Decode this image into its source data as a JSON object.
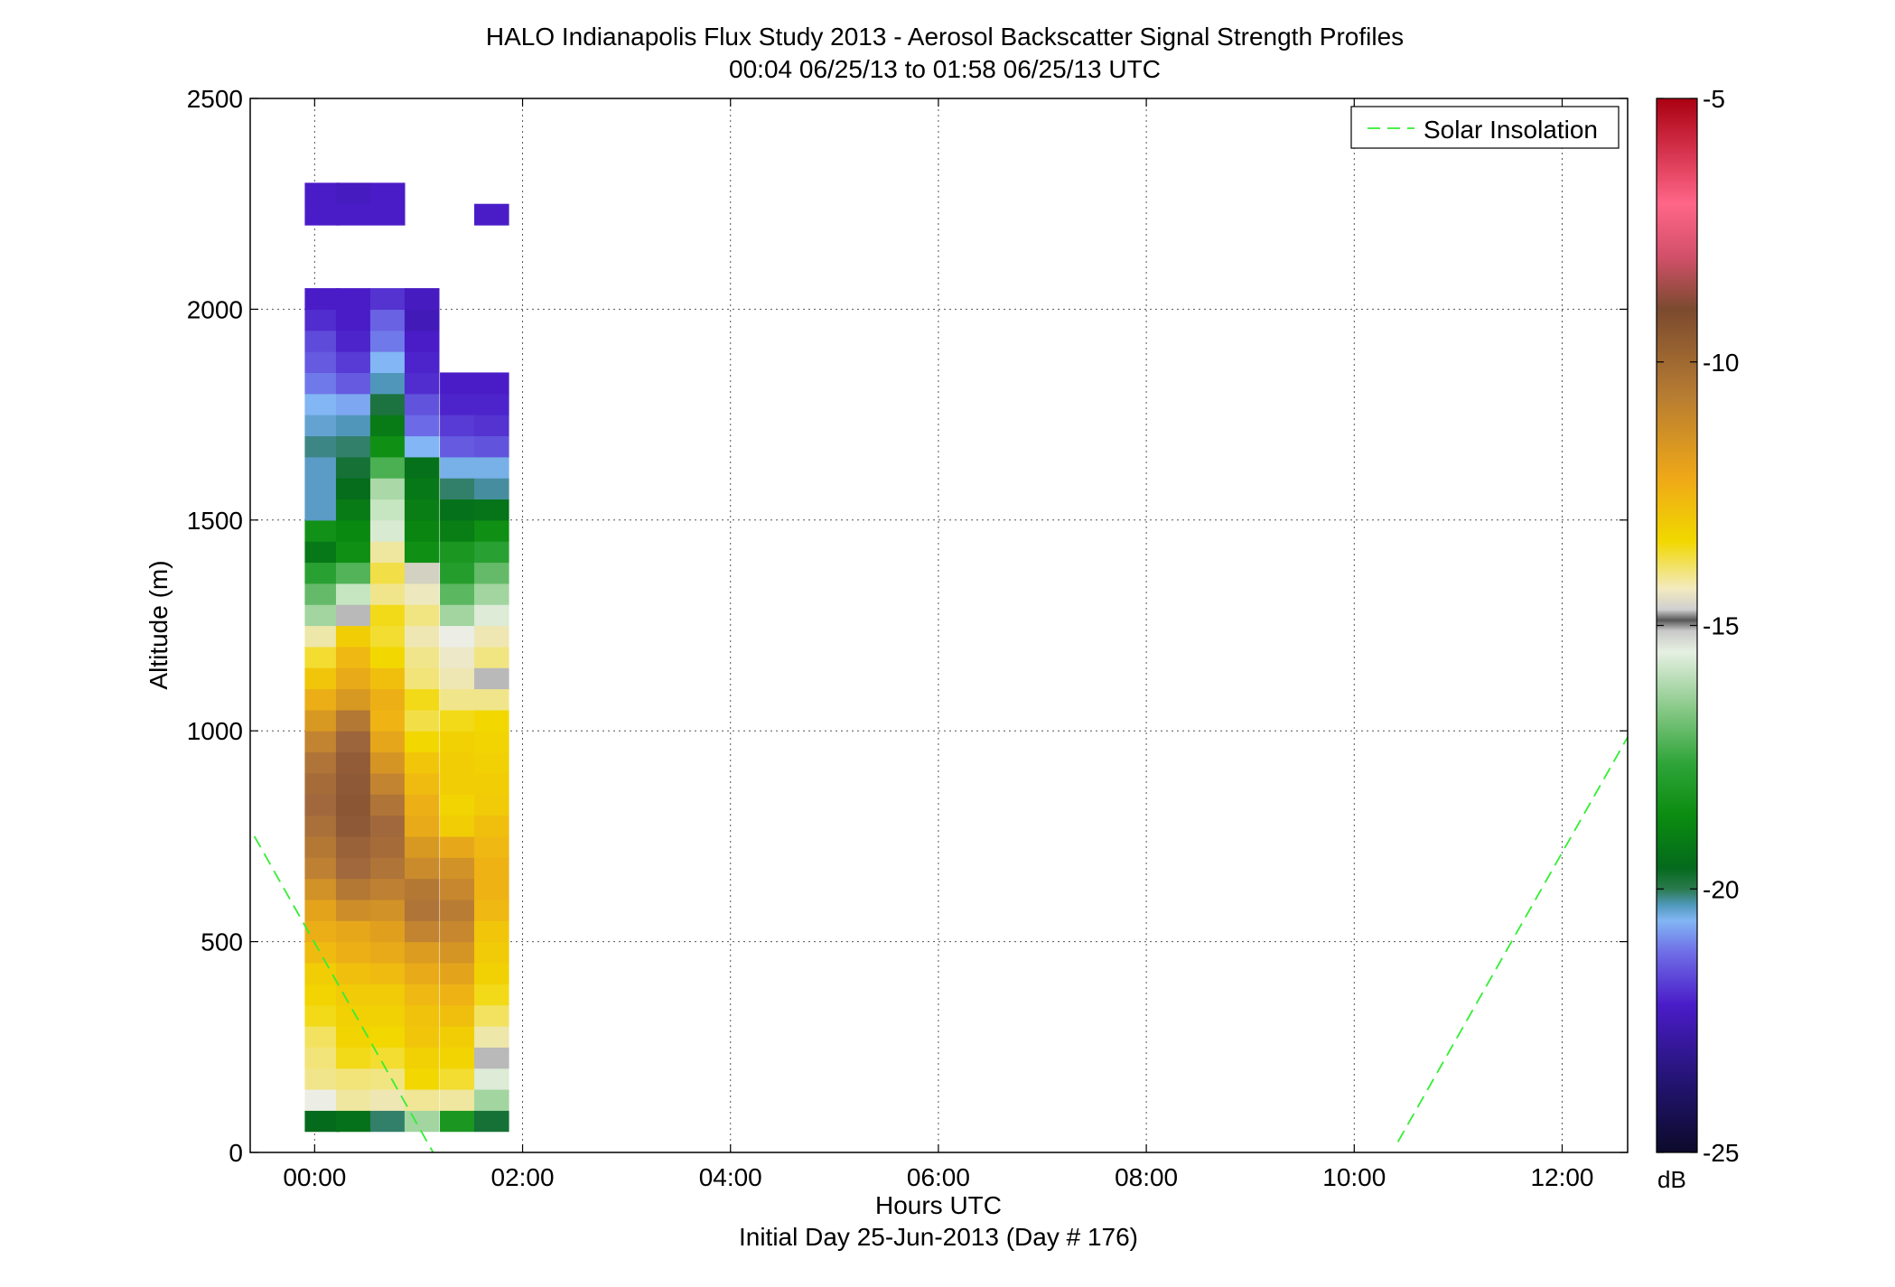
{
  "colors": {
    "background": "#ffffff",
    "axis": "#000000",
    "grid": "#555555",
    "solar_line": "#33ee33"
  },
  "chart_data": {
    "type": "heatmap",
    "title": "HALO Indianapolis Flux Study 2013 - Aerosol Backscatter Signal Strength Profiles",
    "subtitle": "00:04 06/25/13 to 01:58 06/25/13  UTC",
    "xlabel": "Hours UTC",
    "xlabel2": "Initial Day 25-Jun-2013 (Day # 176)",
    "ylabel": "Altitude (m)",
    "xlim": [
      -0.62,
      12.63
    ],
    "ylim": [
      0,
      2500
    ],
    "x_ticks": [
      0,
      2,
      4,
      6,
      8,
      10,
      12
    ],
    "x_tick_labels": [
      "00:00",
      "02:00",
      "04:00",
      "06:00",
      "08:00",
      "10:00",
      "12:00"
    ],
    "y_ticks": [
      0,
      500,
      1000,
      1500,
      2000,
      2500
    ],
    "y_tick_labels": [
      "0",
      "500",
      "1000",
      "1500",
      "2000",
      "2500"
    ],
    "grid": true,
    "legend": {
      "position": "top-right",
      "entries": [
        {
          "label": "Solar Insolation",
          "style": "dashed",
          "color": "#33ee33"
        }
      ]
    },
    "colorbar": {
      "unit": "dB",
      "range": [
        -25,
        -5
      ],
      "ticks": [
        -25,
        -20,
        -15,
        -10,
        -5
      ],
      "tick_labels": [
        "-25",
        "-20",
        "-15",
        "-10",
        "-5"
      ]
    },
    "heatmap": {
      "time_centers_hours": [
        0.07,
        0.37,
        0.7,
        1.03,
        1.37,
        1.7
      ],
      "time_bin_width_hours": 0.33,
      "alt_start_m": 50,
      "alt_bin_m": 50,
      "columns_db": [
        [
          -20,
          -15.2,
          -14.2,
          -14.0,
          -13.9,
          -13.6,
          -13.4,
          -13.2,
          -12.7,
          -12.2,
          -11.7,
          -11.1,
          -10.6,
          -10.4,
          -10.2,
          -10.0,
          -10.1,
          -10.3,
          -10.7,
          -11.3,
          -12.2,
          -13.0,
          -13.7,
          -14.5,
          -16.6,
          -17.4,
          -18.2,
          -19.6,
          -18.8,
          -21.1,
          -21.1,
          -21.1,
          -20.8,
          -21.2,
          -21.5,
          -21.9,
          -22.2,
          -22.4,
          -22.8,
          -23.0,
          null,
          null,
          null,
          -23.0,
          -23.0
        ],
        [
          -19.8,
          -14.4,
          -14.0,
          -13.6,
          -13.4,
          -13.3,
          -13.1,
          -12.8,
          -12.3,
          -11.9,
          -11.0,
          -10.4,
          -10.0,
          -9.8,
          -9.5,
          -9.4,
          -9.5,
          -9.6,
          -9.9,
          -10.4,
          -11.3,
          -12.0,
          -12.6,
          -13.2,
          -15.0,
          -16.1,
          -17.6,
          -18.9,
          -19.1,
          -19.5,
          -19.9,
          -20.3,
          -20.7,
          -21.0,
          -21.6,
          -22.2,
          -22.6,
          -22.9,
          -23.0,
          -23.0,
          null,
          null,
          null,
          -23.0,
          -23.1
        ],
        [
          -20.7,
          -14.6,
          -14.1,
          -13.7,
          -13.5,
          -13.3,
          -13.1,
          -12.7,
          -12.0,
          -11.5,
          -11.1,
          -10.6,
          -10.3,
          -10.1,
          -10.0,
          -10.3,
          -10.7,
          -11.2,
          -11.8,
          -12.5,
          -12.3,
          -12.8,
          -13.5,
          -13.7,
          -13.6,
          -14.2,
          -13.8,
          -14.4,
          -15.7,
          -16.1,
          -16.5,
          -17.7,
          -18.9,
          -19.5,
          -20.4,
          -21.0,
          -21.5,
          -21.9,
          -22.1,
          -22.7,
          null,
          null,
          null,
          -23.0,
          -23.0
        ],
        [
          -16.6,
          -14.3,
          -13.5,
          -13.3,
          -13.0,
          -12.9,
          -12.6,
          -12.0,
          -11.4,
          -10.7,
          -10.3,
          -10.4,
          -10.9,
          -11.3,
          -12.0,
          -12.3,
          -12.7,
          -13.0,
          -13.5,
          -13.8,
          -13.6,
          -14.0,
          -14.2,
          -14.6,
          -14.1,
          -14.7,
          -14.9,
          -18.9,
          -19.2,
          -19.4,
          -19.6,
          -19.8,
          -21.5,
          -22.0,
          -22.3,
          -22.8,
          -22.9,
          -23.0,
          -23.2,
          -23.1,
          null,
          null,
          null,
          null,
          null
        ],
        [
          -18.6,
          -14.4,
          -13.7,
          -13.4,
          -13.2,
          -12.8,
          -12.4,
          -11.7,
          -11.2,
          -10.8,
          -10.5,
          -10.8,
          -11.1,
          -11.9,
          -13.2,
          -13.4,
          -13.2,
          -13.2,
          -13.3,
          -13.6,
          -14.2,
          -14.6,
          -14.8,
          -15.2,
          -16.6,
          -17.5,
          -18.3,
          -18.6,
          -19.4,
          -19.8,
          -20.7,
          -21.4,
          -22.2,
          -22.6,
          -22.9,
          -23.0,
          null,
          null,
          null,
          null,
          null,
          null,
          null,
          null,
          null
        ],
        [
          -20.3,
          -16.6,
          -15.6,
          -15.0,
          -14.5,
          -13.9,
          -13.6,
          -13.3,
          -13.1,
          -13.0,
          -12.6,
          -12.4,
          -12.4,
          -12.6,
          -12.8,
          -13.1,
          -13.2,
          -13.3,
          -13.4,
          -13.5,
          -14.2,
          -15.0,
          -14.1,
          -14.6,
          -15.6,
          -16.6,
          -17.4,
          -18.2,
          -18.9,
          -19.7,
          -20.9,
          -21.4,
          -22.3,
          -22.7,
          -22.9,
          -23.0,
          null,
          null,
          null,
          null,
          null,
          null,
          null,
          -23.0,
          null
        ]
      ]
    },
    "series": [
      {
        "name": "Solar Insolation",
        "style": "dashed",
        "segments": [
          {
            "x": [
              -0.58,
              1.14
            ],
            "y": [
              750,
              0
            ]
          },
          {
            "x": [
              10.42,
              12.63
            ],
            "y": [
              25,
              985
            ]
          }
        ]
      }
    ]
  }
}
